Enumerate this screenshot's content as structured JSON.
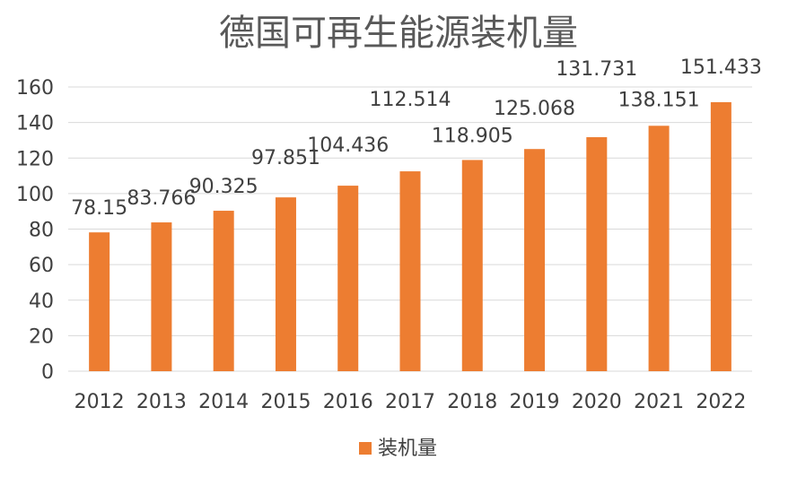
{
  "chart_data": {
    "type": "bar",
    "title": "德国可再生能源装机量",
    "xlabel": "",
    "ylabel": "",
    "categories": [
      "2012",
      "2013",
      "2014",
      "2015",
      "2016",
      "2017",
      "2018",
      "2019",
      "2020",
      "2021",
      "2022"
    ],
    "series": [
      {
        "name": "装机量",
        "values": [
          78.15,
          83.766,
          90.325,
          97.851,
          104.436,
          112.514,
          118.905,
          125.068,
          131.731,
          138.151,
          151.433
        ],
        "labels": [
          "78.15",
          "83.766",
          "90.325",
          "97.851",
          "104.436",
          "112.514",
          "118.905",
          "125.068",
          "131.731",
          "138.151",
          "151.433"
        ]
      }
    ],
    "ylim": [
      0,
      160
    ],
    "yticks": [
      "0",
      "20",
      "40",
      "60",
      "80",
      "100",
      "120",
      "140",
      "160"
    ],
    "grid": true,
    "legend_position": "bottom",
    "colors": {
      "bar": "#ED7D31",
      "grid": "#D9D9D9",
      "text": "#404040",
      "title": "#595959"
    }
  }
}
